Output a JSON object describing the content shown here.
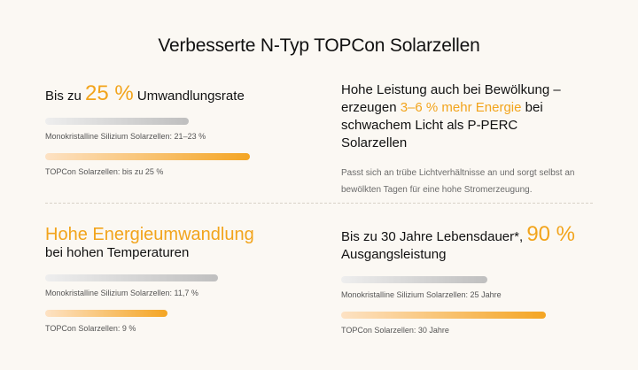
{
  "title": "Verbesserte N-Typ TOPCon Solarzellen",
  "top_left": {
    "prefix": "Bis zu ",
    "highlight": "25 %",
    "suffix": " Umwandlungsrate",
    "bars": [
      {
        "label": "Monokristalline Silizium Solarzellen: 21–23 %",
        "fill": 0.54,
        "style": "grey"
      },
      {
        "label": "TOPCon Solarzellen: bis zu 25 %",
        "fill": 0.77,
        "style": "orange"
      }
    ]
  },
  "top_right": {
    "line1": "Hohe Leistung auch bei Bewölkung –",
    "line2_prefix": "erzeugen ",
    "line2_highlight": "3–6 % mehr Energie",
    "line2_suffix": " bei",
    "line3": "schwachem Licht als P-PERC",
    "line4": "Solarzellen",
    "description": "Passt sich an trübe Lichtverhältnisse an und sorgt selbst an bewölkten Tagen für eine hohe Stromerzeugung."
  },
  "bottom_left": {
    "highlight": "Hohe Energieumwandlung",
    "subline": "bei hohen Temperaturen",
    "bars": [
      {
        "label": "Monokristalline Silizium Solarzellen: 11,7 %",
        "fill": 0.65,
        "style": "grey"
      },
      {
        "label": "TOPCon Solarzellen: 9 %",
        "fill": 0.46,
        "style": "orange"
      }
    ]
  },
  "bottom_right": {
    "prefix": "Bis zu 30 Jahre Lebensdauer*, ",
    "highlight": "90 %",
    "line2": "Ausgangsleistung",
    "bars": [
      {
        "label": "Monokristalline Silizium Solarzellen: 25 Jahre",
        "fill": 0.55,
        "style": "grey"
      },
      {
        "label": "TOPCon Solarzellen: 30 Jahre",
        "fill": 0.77,
        "style": "orange"
      }
    ]
  },
  "colors": {
    "accent": "#f2a41c",
    "background": "#fbf8f3"
  }
}
